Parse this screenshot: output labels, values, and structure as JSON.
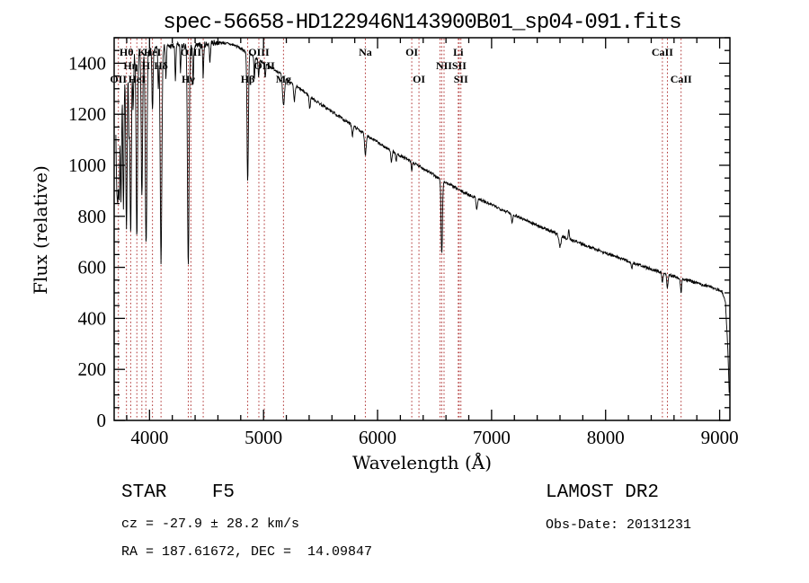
{
  "title": "spec-56658-HD122946N143900B01_sp04-091.fits",
  "chart_data": {
    "type": "line",
    "title": "spec-56658-HD122946N143900B01_sp04-091.fits",
    "xlabel": "Wavelength (Å)",
    "ylabel": "Flux (relative)",
    "xlim": [
      3690,
      9090
    ],
    "ylim": [
      0,
      1500
    ],
    "xticks": [
      4000,
      5000,
      6000,
      7000,
      8000,
      9000
    ],
    "yticks": [
      0,
      200,
      400,
      600,
      800,
      1000,
      1200,
      1400
    ],
    "x_minor_step": 200,
    "y_minor_step": 50,
    "grid": false,
    "line_color": "#000000",
    "marker_color": "#b03535",
    "background": "#ffffff",
    "noise": {
      "seed": 7,
      "amp_blue": 20,
      "amp_mid": 12,
      "amp_red": 6
    },
    "continuum": [
      [
        3705,
        1260
      ],
      [
        3740,
        1320
      ],
      [
        3780,
        1370
      ],
      [
        3830,
        1410
      ],
      [
        3880,
        1430
      ],
      [
        3930,
        1440
      ],
      [
        3980,
        1445
      ],
      [
        4050,
        1455
      ],
      [
        4150,
        1465
      ],
      [
        4250,
        1470
      ],
      [
        4350,
        1465
      ],
      [
        4450,
        1470
      ],
      [
        4550,
        1480
      ],
      [
        4650,
        1480
      ],
      [
        4750,
        1470
      ],
      [
        4850,
        1445
      ],
      [
        4950,
        1415
      ],
      [
        5050,
        1390
      ],
      [
        5150,
        1360
      ],
      [
        5250,
        1320
      ],
      [
        5350,
        1290
      ],
      [
        5450,
        1255
      ],
      [
        5550,
        1225
      ],
      [
        5650,
        1195
      ],
      [
        5750,
        1165
      ],
      [
        5850,
        1135
      ],
      [
        5950,
        1105
      ],
      [
        6050,
        1075
      ],
      [
        6150,
        1050
      ],
      [
        6250,
        1025
      ],
      [
        6350,
        1000
      ],
      [
        6450,
        975
      ],
      [
        6550,
        945
      ],
      [
        6650,
        920
      ],
      [
        6750,
        895
      ],
      [
        6850,
        875
      ],
      [
        6950,
        855
      ],
      [
        7050,
        835
      ],
      [
        7150,
        815
      ],
      [
        7250,
        795
      ],
      [
        7350,
        775
      ],
      [
        7450,
        755
      ],
      [
        7550,
        735
      ],
      [
        7650,
        715
      ],
      [
        7750,
        700
      ],
      [
        7850,
        682
      ],
      [
        7950,
        665
      ],
      [
        8050,
        648
      ],
      [
        8150,
        632
      ],
      [
        8250,
        616
      ],
      [
        8350,
        600
      ],
      [
        8450,
        586
      ],
      [
        8550,
        572
      ],
      [
        8650,
        558
      ],
      [
        8750,
        545
      ],
      [
        8850,
        532
      ],
      [
        8950,
        520
      ],
      [
        9020,
        505
      ],
      [
        9050,
        470
      ],
      [
        9070,
        300
      ],
      [
        9085,
        90
      ]
    ],
    "absorption_lines": [
      [
        3712,
        320,
        5
      ],
      [
        3722,
        360,
        5
      ],
      [
        3734,
        430,
        5
      ],
      [
        3750,
        470,
        5
      ],
      [
        3771,
        520,
        5
      ],
      [
        3798,
        640,
        6
      ],
      [
        3820,
        260,
        4
      ],
      [
        3835,
        690,
        6
      ],
      [
        3856,
        200,
        4
      ],
      [
        3889,
        730,
        6
      ],
      [
        3933,
        570,
        6
      ],
      [
        3970,
        760,
        7
      ],
      [
        4026,
        240,
        5
      ],
      [
        4077,
        150,
        4
      ],
      [
        4101,
        840,
        7
      ],
      [
        4144,
        130,
        4
      ],
      [
        4227,
        140,
        4
      ],
      [
        4272,
        100,
        4
      ],
      [
        4340,
        860,
        7
      ],
      [
        4383,
        150,
        4
      ],
      [
        4471,
        130,
        4
      ],
      [
        4530,
        80,
        4
      ],
      [
        4861,
        510,
        6
      ],
      [
        4920,
        90,
        4
      ],
      [
        4957,
        70,
        4
      ],
      [
        5015,
        60,
        4
      ],
      [
        5175,
        115,
        9
      ],
      [
        5270,
        65,
        6
      ],
      [
        5405,
        50,
        5
      ],
      [
        5780,
        40,
        5
      ],
      [
        5893,
        80,
        7
      ],
      [
        6122,
        45,
        5
      ],
      [
        6163,
        35,
        4
      ],
      [
        6300,
        35,
        4
      ],
      [
        6563,
        290,
        6
      ],
      [
        6870,
        40,
        6
      ],
      [
        7180,
        30,
        6
      ],
      [
        7600,
        45,
        8
      ],
      [
        8230,
        25,
        5
      ],
      [
        8498,
        40,
        5
      ],
      [
        8542,
        55,
        5
      ],
      [
        8662,
        55,
        5
      ]
    ],
    "emission_features": [
      [
        7677,
        40,
        4
      ]
    ],
    "spectral_markers": [
      {
        "label": "OII",
        "wavelength": 3727,
        "row": 3
      },
      {
        "label": "Hθ",
        "wavelength": 3798,
        "row": 1
      },
      {
        "label": "Hη",
        "wavelength": 3835,
        "row": 2
      },
      {
        "label": "HeI",
        "wavelength": 3889,
        "row": 3
      },
      {
        "label": "K",
        "wavelength": 3933,
        "row": 1
      },
      {
        "label": "H",
        "wavelength": 3968,
        "row": 2
      },
      {
        "label": "HeI",
        "wavelength": 4026,
        "row": 1
      },
      {
        "label": "Hδ",
        "wavelength": 4101,
        "row": 2
      },
      {
        "label": "Hγ",
        "wavelength": 4340,
        "row": 3
      },
      {
        "label": "OIII",
        "wavelength": 4363,
        "row": 1
      },
      {
        "label": "",
        "wavelength": 4471,
        "row": 0
      },
      {
        "label": "Hβ",
        "wavelength": 4861,
        "row": 3
      },
      {
        "label": "OIII",
        "wavelength": 4959,
        "row": 1
      },
      {
        "label": "OIII",
        "wavelength": 5007,
        "row": 2
      },
      {
        "label": "Mg",
        "wavelength": 5175,
        "row": 3
      },
      {
        "label": "Na",
        "wavelength": 5893,
        "row": 1
      },
      {
        "label": "OI",
        "wavelength": 6300,
        "row": 1
      },
      {
        "label": "OI",
        "wavelength": 6363,
        "row": 3
      },
      {
        "label": "",
        "wavelength": 6548,
        "row": 0
      },
      {
        "label": "",
        "wavelength": 6563,
        "row": 0
      },
      {
        "label": "NII",
        "wavelength": 6583,
        "row": 2
      },
      {
        "label": "Li",
        "wavelength": 6708,
        "row": 1
      },
      {
        "label": "SII",
        "wavelength": 6716,
        "row": 2
      },
      {
        "label": "SII",
        "wavelength": 6731,
        "row": 3
      },
      {
        "label": "CaII",
        "wavelength": 8498,
        "row": 1
      },
      {
        "label": "",
        "wavelength": 8542,
        "row": 0
      },
      {
        "label": "CaII",
        "wavelength": 8662,
        "row": 3
      }
    ]
  },
  "footer": {
    "class_line": "STAR    F5",
    "survey": "LAMOST DR2",
    "cz_line": "cz = -27.9 ± 28.2 km/s",
    "obs_date_line": "Obs-Date: 20131231",
    "radec_line": "RA = 187.61672, DEC =  14.09847"
  }
}
